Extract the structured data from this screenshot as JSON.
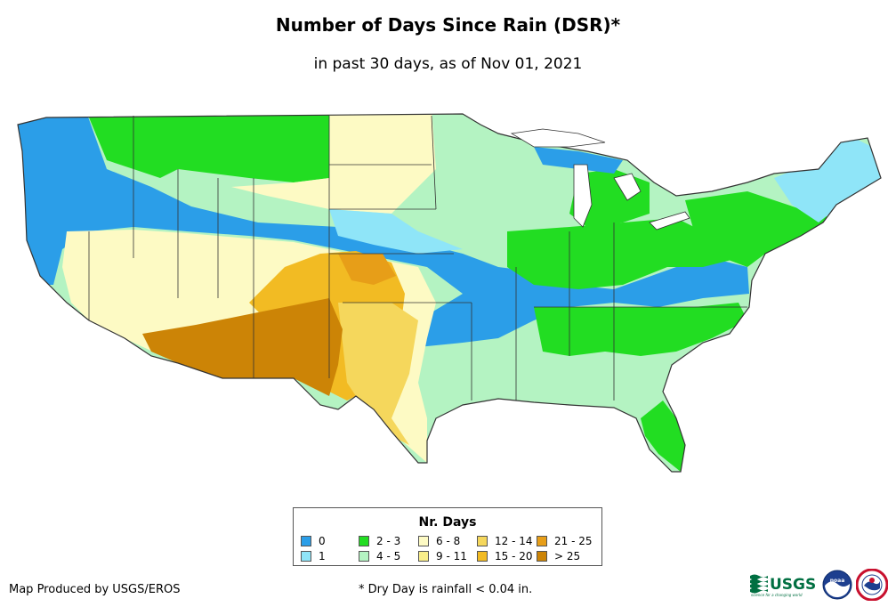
{
  "header": {
    "title": "Number of Days Since Rain (DSR)*",
    "subtitle": "in past 30 days, as of Nov 01, 2021"
  },
  "legend": {
    "title": "Nr. Days",
    "items": [
      {
        "label": "0",
        "color": "#2b9ee8"
      },
      {
        "label": "1",
        "color": "#8fe5f8"
      },
      {
        "label": "2 - 3",
        "color": "#22dd22"
      },
      {
        "label": "4 - 5",
        "color": "#b4f3c2"
      },
      {
        "label": "6 - 8",
        "color": "#fdfac4"
      },
      {
        "label": "9 - 11",
        "color": "#f9ee8a"
      },
      {
        "label": "12 - 14",
        "color": "#f5d75c"
      },
      {
        "label": "15 - 20",
        "color": "#f2bb23"
      },
      {
        "label": "21 - 25",
        "color": "#e79e18"
      },
      {
        "label": "> 25",
        "color": "#cc8406"
      }
    ]
  },
  "footer": {
    "credit": "Map Produced by USGS/EROS",
    "note": "* Dry Day is rainfall < 0.04 in."
  },
  "logos": {
    "usgs": "USGS",
    "usgs_tagline": "science for a changing world",
    "noaa": "noaa"
  },
  "colors": {
    "boundary": "#333333",
    "water": "#ffffff"
  }
}
